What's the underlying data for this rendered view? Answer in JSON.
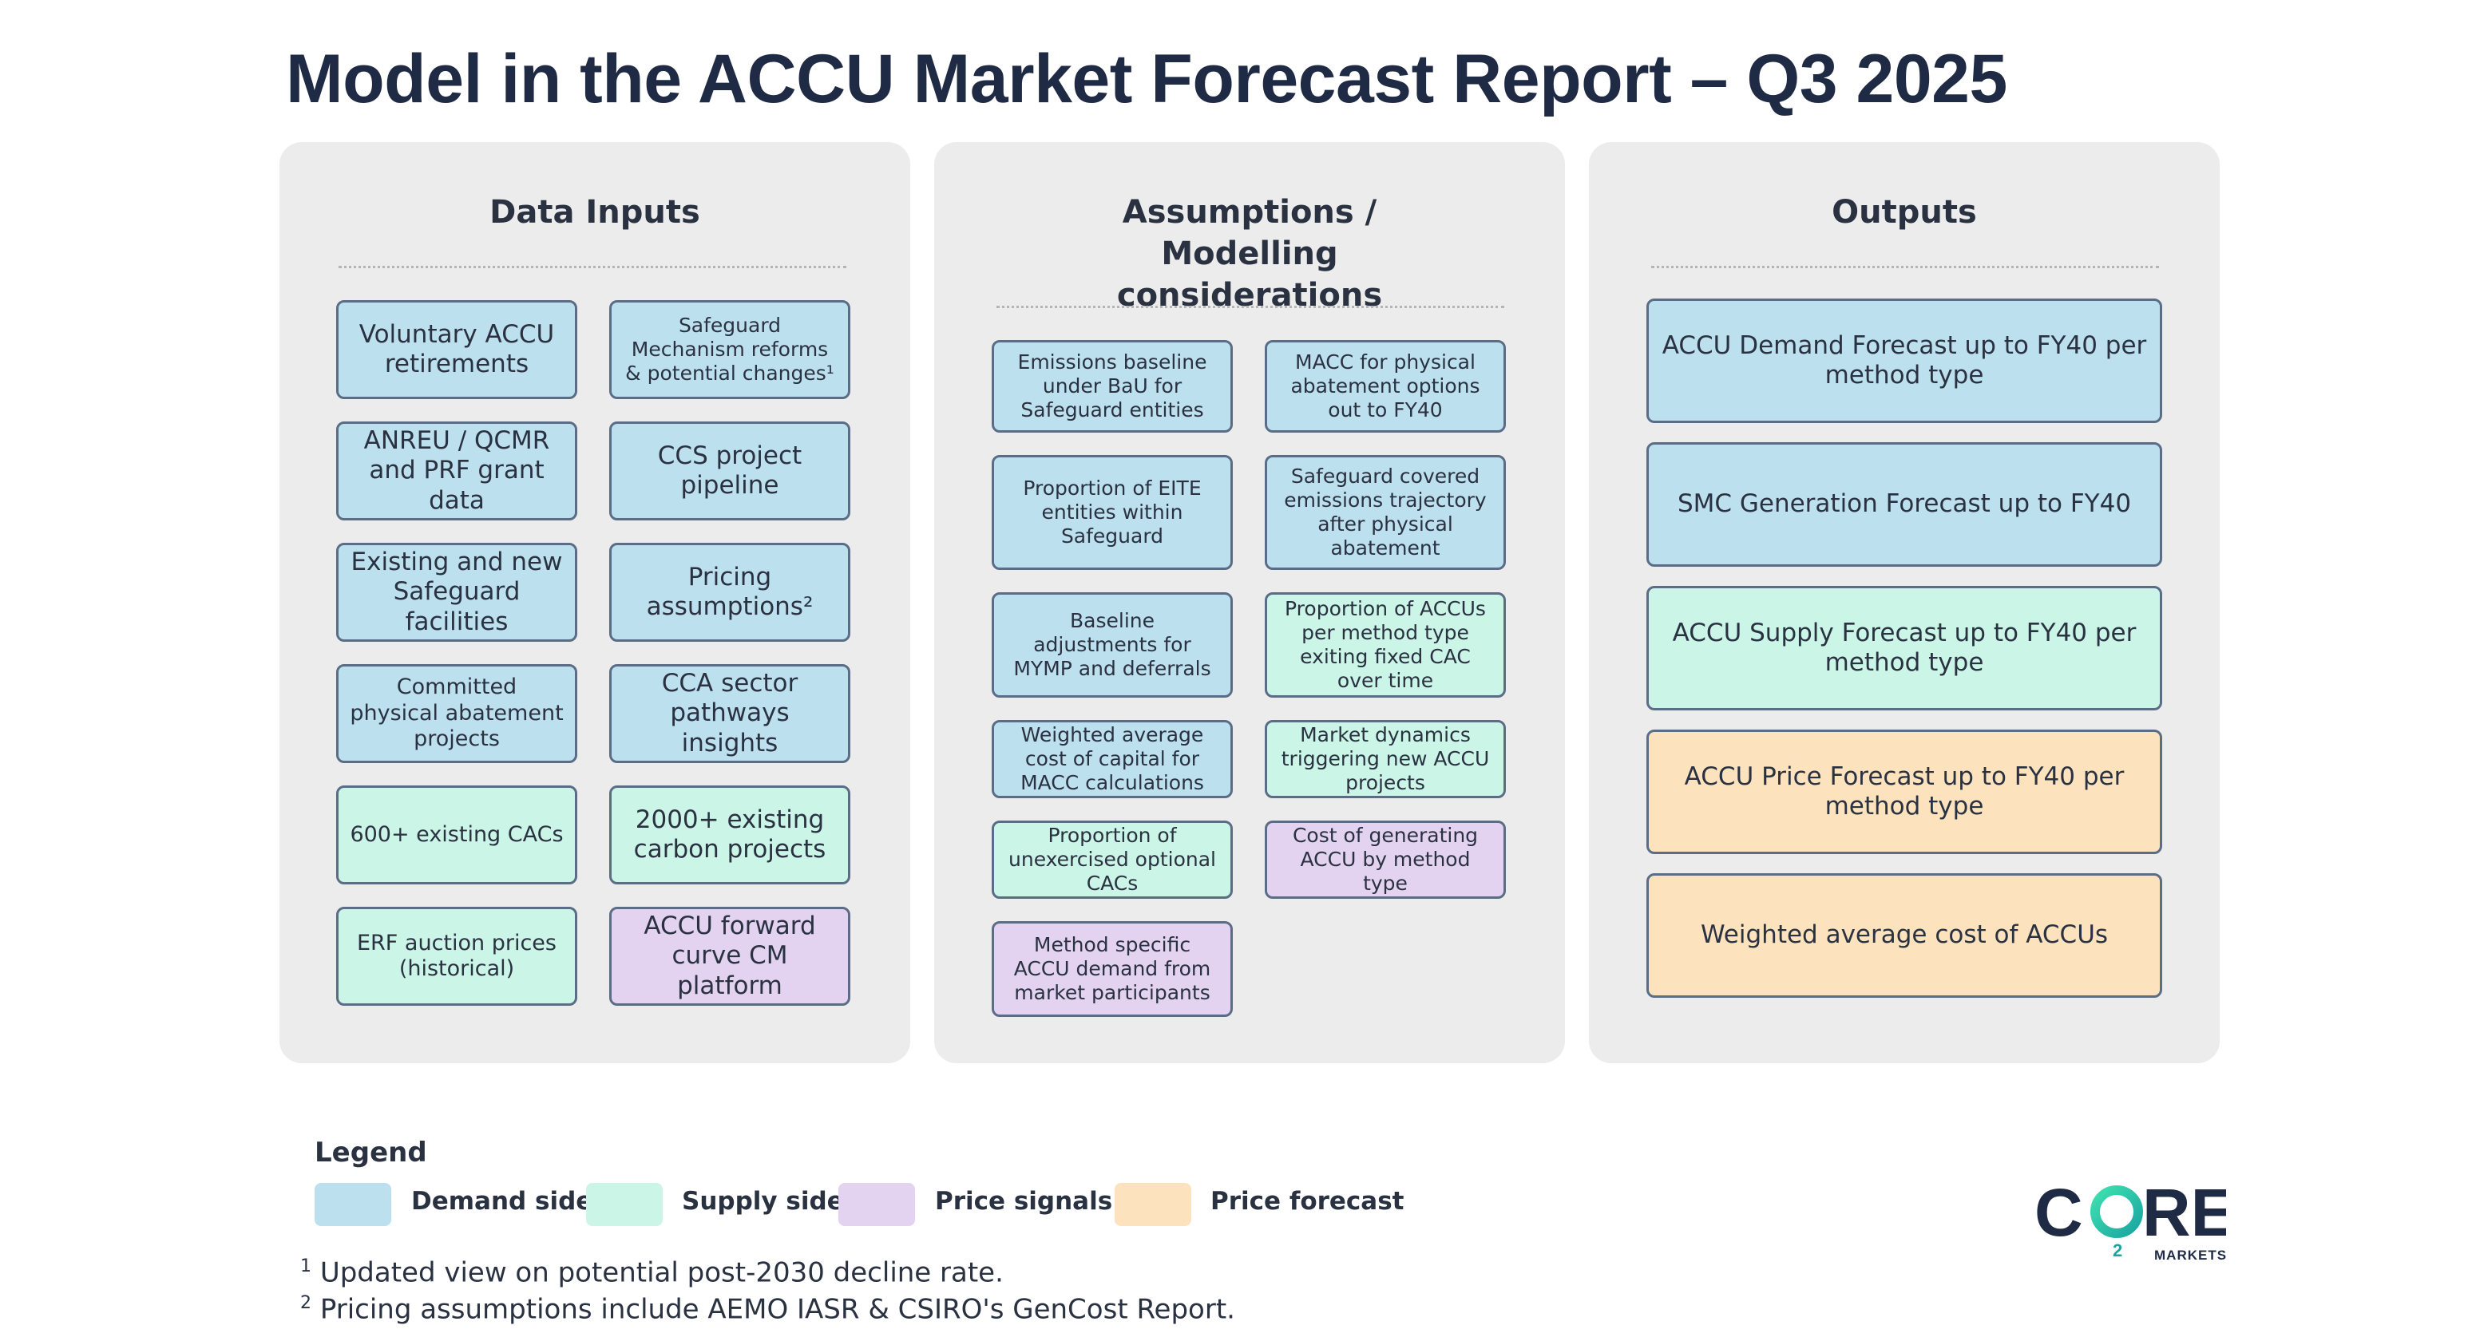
{
  "title": "Model in the ACCU Market Forecast Report – Q3 2025",
  "colors": {
    "demand_side": "#bde0ef",
    "supply_side": "#cbf5e6",
    "price_signals": "#e3d2f0",
    "price_forecast": "#fde3bd",
    "panel_background": "#ececec",
    "border": "#5b6d86"
  },
  "panels": {
    "inputs": {
      "title": "Data Inputs",
      "items": [
        {
          "label": "Voluntary ACCU retirements",
          "category": "demand_side"
        },
        {
          "label": "Safeguard Mechanism reforms & potential changes¹",
          "category": "demand_side"
        },
        {
          "label": "ANREU / QCMR and PRF grant data",
          "category": "demand_side"
        },
        {
          "label": "CCS project pipeline",
          "category": "demand_side"
        },
        {
          "label": "Existing and new Safeguard facilities",
          "category": "demand_side"
        },
        {
          "label": "Pricing assumptions²",
          "category": "demand_side"
        },
        {
          "label": "Committed physical abatement projects",
          "category": "demand_side"
        },
        {
          "label": "CCA sector pathways insights",
          "category": "demand_side"
        },
        {
          "label": "600+ existing CACs",
          "category": "supply_side"
        },
        {
          "label": "2000+ existing carbon projects",
          "category": "supply_side"
        },
        {
          "label": "ERF auction prices (historical)",
          "category": "supply_side"
        },
        {
          "label": "ACCU forward curve CM platform",
          "category": "price_signals"
        }
      ]
    },
    "assumptions": {
      "title": "Assumptions / Modelling considerations",
      "items": [
        {
          "label": "Emissions baseline under BaU for Safeguard entities",
          "category": "demand_side"
        },
        {
          "label": "MACC for physical abatement options out to FY40",
          "category": "demand_side"
        },
        {
          "label": "Proportion of EITE entities within Safeguard",
          "category": "demand_side"
        },
        {
          "label": "Safeguard covered emissions trajectory after physical abatement",
          "category": "demand_side"
        },
        {
          "label": "Baseline adjustments for MYMP and deferrals",
          "category": "demand_side"
        },
        {
          "label": "Proportion of ACCUs per method type exiting fixed CAC over time",
          "category": "supply_side"
        },
        {
          "label": "Weighted average cost of capital for MACC calculations",
          "category": "demand_side"
        },
        {
          "label": "Market dynamics triggering new ACCU projects",
          "category": "supply_side"
        },
        {
          "label": "Proportion of unexercised optional CACs",
          "category": "supply_side"
        },
        {
          "label": "Cost of generating ACCU by method type",
          "category": "price_signals"
        },
        {
          "label": "Method specific ACCU demand from market participants",
          "category": "price_signals"
        }
      ]
    },
    "outputs": {
      "title": "Outputs",
      "items": [
        {
          "label": "ACCU Demand Forecast up to FY40 per method type",
          "category": "demand_side"
        },
        {
          "label": "SMC Generation Forecast up to FY40",
          "category": "demand_side"
        },
        {
          "label": "ACCU Supply Forecast up to FY40 per method type",
          "category": "supply_side"
        },
        {
          "label": "ACCU Price Forecast up to FY40 per method type",
          "category": "price_forecast"
        },
        {
          "label": "Weighted average cost of ACCUs",
          "category": "price_forecast"
        }
      ]
    }
  },
  "legend": {
    "title": "Legend",
    "items": [
      {
        "label": "Demand side",
        "category": "demand_side"
      },
      {
        "label": "Supply side",
        "category": "supply_side"
      },
      {
        "label": "Price signals",
        "category": "price_signals"
      },
      {
        "label": "Price forecast",
        "category": "price_forecast"
      }
    ]
  },
  "footnotes": [
    {
      "marker": "1",
      "text": "Updated view on potential post-2030 decline rate."
    },
    {
      "marker": "2",
      "text": "Pricing assumptions include AEMO IASR & CSIRO's GenCost Report."
    }
  ],
  "logo": {
    "name": "CORE",
    "subscript": "2",
    "tagline": "MARKETS"
  }
}
